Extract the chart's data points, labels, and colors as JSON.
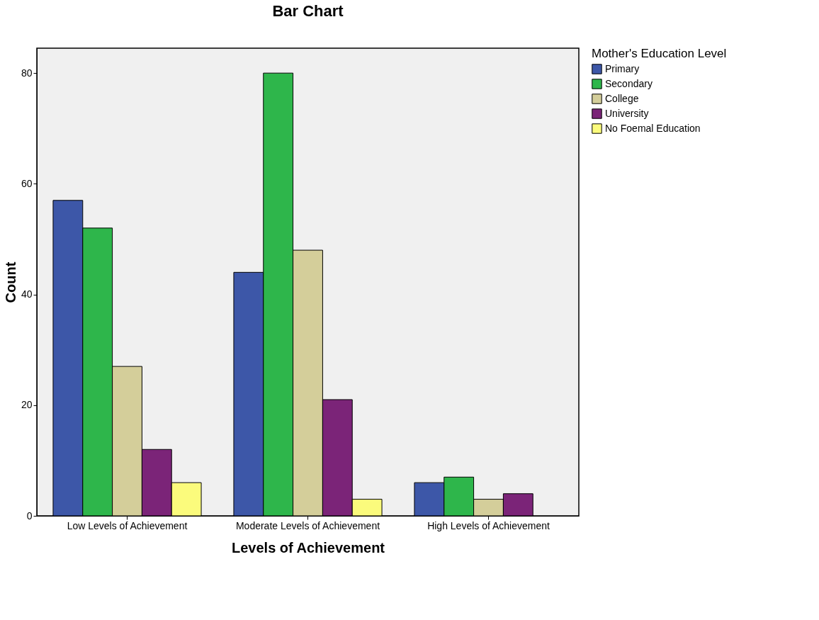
{
  "chart_data": {
    "type": "bar",
    "title": "Bar Chart",
    "xlabel": "Levels of Achievement",
    "ylabel": "Count",
    "legend_title": "Mother's Education Level",
    "legend": "right",
    "grid": false,
    "categories": [
      "Low Levels of Achievement",
      "Moderate Levels of Achievement",
      "High Levels of Achievement"
    ],
    "ylim": [
      0,
      84.5
    ],
    "yticks": [
      0,
      20,
      40,
      60,
      80
    ],
    "series": [
      {
        "name": "Primary",
        "color": "#3d57a8",
        "values": [
          57,
          44,
          6
        ]
      },
      {
        "name": "Secondary",
        "color": "#2eb64b",
        "values": [
          52,
          80,
          7
        ]
      },
      {
        "name": "College",
        "color": "#d4ce9a",
        "values": [
          27,
          48,
          3
        ]
      },
      {
        "name": "University",
        "color": "#7b2478",
        "values": [
          12,
          21,
          4
        ]
      },
      {
        "name": "No Foemal Education",
        "color": "#fbfb7c",
        "values": [
          6,
          3,
          null
        ]
      }
    ]
  }
}
